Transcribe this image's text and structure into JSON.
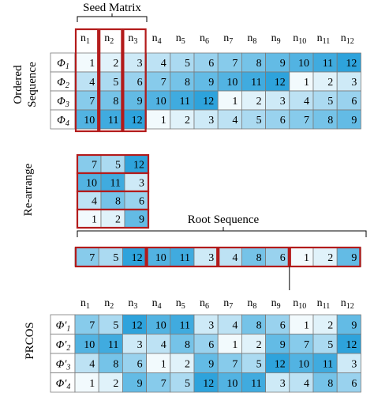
{
  "labels": {
    "seed_matrix": "Seed Matrix",
    "ordered_sequence_line1": "Ordered",
    "ordered_sequence_line2": "Sequence",
    "rearrange": "Re-arrange",
    "root_sequence": "Root Sequence",
    "prcos": "PRCOS"
  },
  "columns": [
    {
      "base": "n",
      "sub": "1"
    },
    {
      "base": "n",
      "sub": "2"
    },
    {
      "base": "n",
      "sub": "3"
    },
    {
      "base": "n",
      "sub": "4"
    },
    {
      "base": "n",
      "sub": "5"
    },
    {
      "base": "n",
      "sub": "6"
    },
    {
      "base": "n",
      "sub": "7"
    },
    {
      "base": "n",
      "sub": "8"
    },
    {
      "base": "n",
      "sub": "9"
    },
    {
      "base": "n",
      "sub": "10"
    },
    {
      "base": "n",
      "sub": "11"
    },
    {
      "base": "n",
      "sub": "12"
    }
  ],
  "ordered": {
    "rows": [
      {
        "label": "Φ",
        "sub": "1",
        "values": [
          1,
          2,
          3,
          4,
          5,
          6,
          7,
          8,
          9,
          10,
          11,
          12
        ]
      },
      {
        "label": "Φ",
        "sub": "2",
        "values": [
          4,
          5,
          6,
          7,
          8,
          9,
          10,
          11,
          12,
          1,
          2,
          3
        ]
      },
      {
        "label": "Φ",
        "sub": "3",
        "values": [
          7,
          8,
          9,
          10,
          11,
          12,
          1,
          2,
          3,
          4,
          5,
          6
        ]
      },
      {
        "label": "Φ",
        "sub": "4",
        "values": [
          10,
          11,
          12,
          1,
          2,
          3,
          4,
          5,
          6,
          7,
          8,
          9
        ]
      }
    ]
  },
  "rearranged": [
    [
      7,
      5,
      12
    ],
    [
      10,
      11,
      3
    ],
    [
      4,
      8,
      6
    ],
    [
      1,
      2,
      9
    ]
  ],
  "root_sequence": [
    7,
    5,
    12,
    10,
    11,
    3,
    4,
    8,
    6,
    1,
    2,
    9
  ],
  "prcos": {
    "rows": [
      {
        "label": "Φ'",
        "sub": "1",
        "values": [
          7,
          5,
          12,
          10,
          11,
          3,
          4,
          8,
          6,
          1,
          2,
          9
        ]
      },
      {
        "label": "Φ'",
        "sub": "2",
        "values": [
          10,
          11,
          3,
          4,
          8,
          6,
          1,
          2,
          9,
          7,
          5,
          12
        ]
      },
      {
        "label": "Φ'",
        "sub": "3",
        "values": [
          4,
          8,
          6,
          1,
          2,
          9,
          7,
          5,
          12,
          10,
          11,
          3
        ]
      },
      {
        "label": "Φ'",
        "sub": "4",
        "values": [
          1,
          2,
          9,
          7,
          5,
          12,
          10,
          11,
          3,
          4,
          8,
          6
        ]
      }
    ]
  },
  "colors": {
    "scale": [
      "#f2fafd",
      "#2ea3dc"
    ],
    "highlight_border": "#b31b1b",
    "grid": "#7a7a7a"
  }
}
